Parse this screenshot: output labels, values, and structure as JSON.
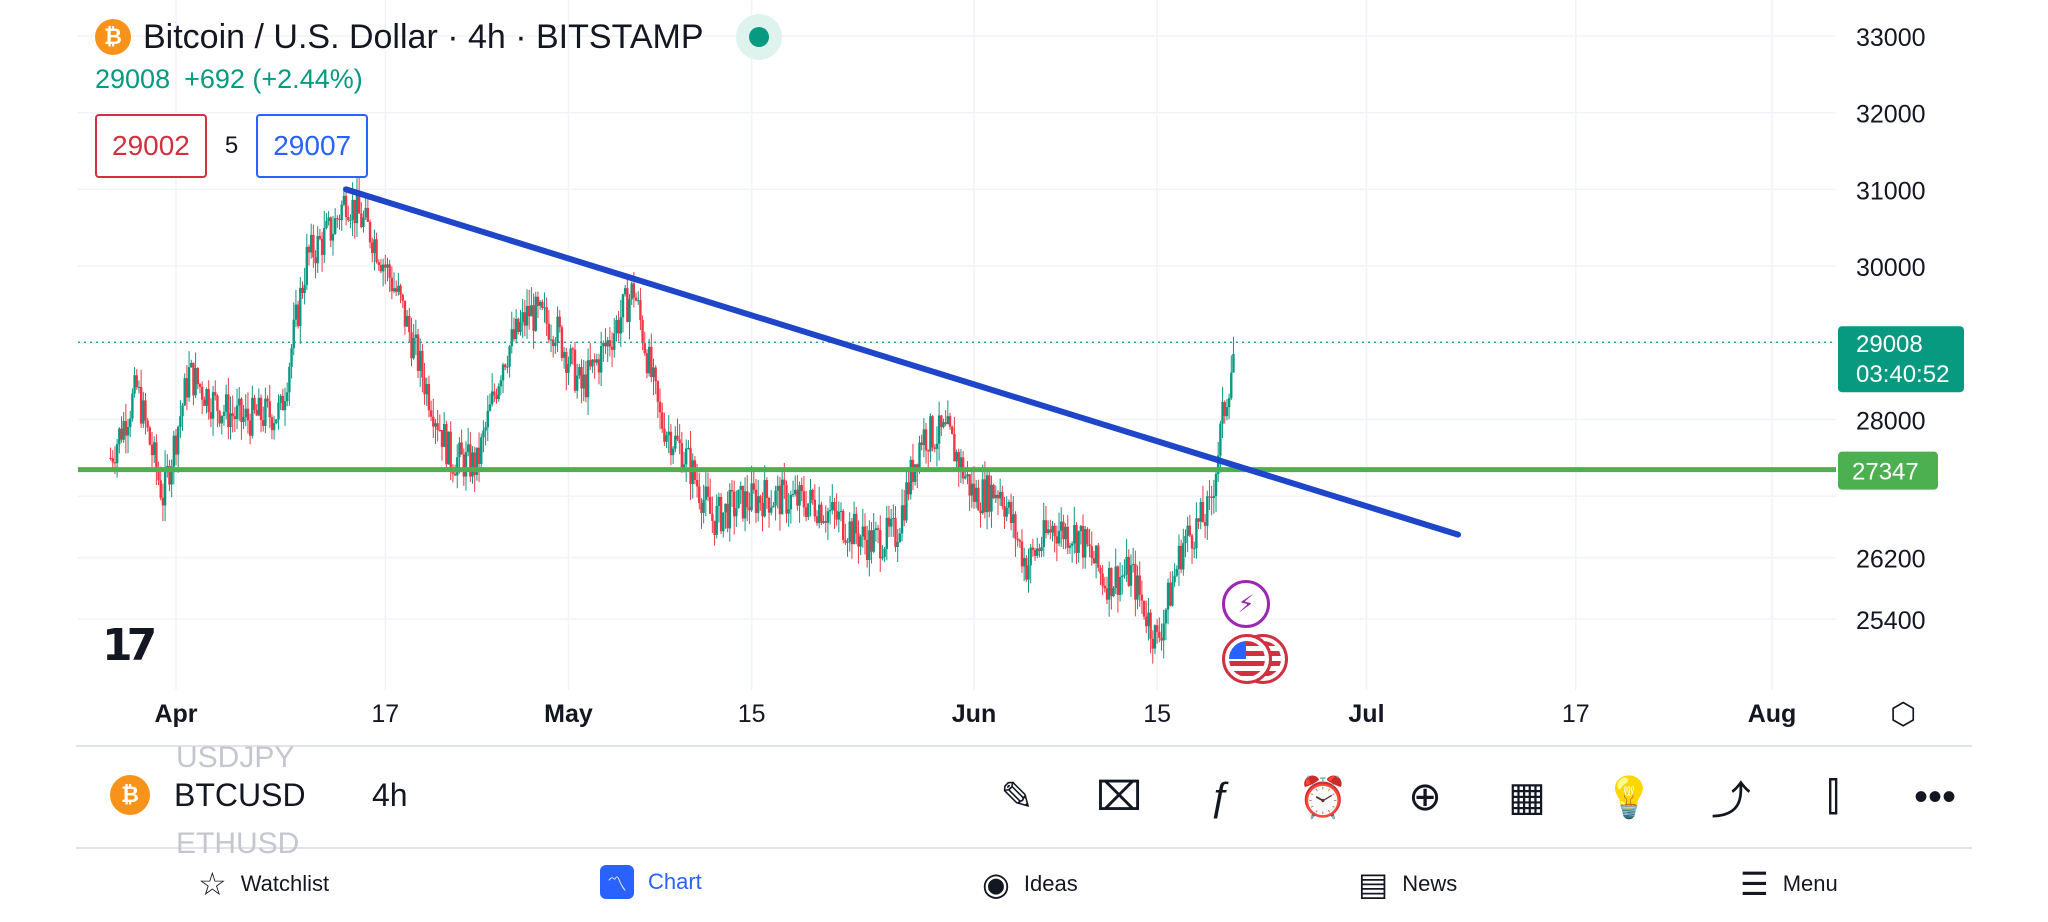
{
  "header": {
    "title": "Bitcoin / U.S. Dollar · 4h · BITSTAMP",
    "coin_glyph": "₿",
    "last_price": "29008",
    "change": "+692 (+2.44%)",
    "bid": "29002",
    "spread": "5",
    "ask": "29007"
  },
  "price_axis": {
    "labels": [
      "33000",
      "32000",
      "31000",
      "30000",
      "28000",
      "26200",
      "25400"
    ]
  },
  "price_tags": {
    "last_price": "29008",
    "countdown": "03:40:52",
    "level": "27347"
  },
  "time_axis": {
    "labels": [
      "Apr",
      "17",
      "May",
      "15",
      "Jun",
      "15",
      "Jul",
      "17",
      "Aug"
    ]
  },
  "events": {
    "bolt_glyph": "⚡"
  },
  "toolbar": {
    "faded_prev": "USDJPY",
    "faded_next": "ETHUSD",
    "symbol": "BTCUSD",
    "timeframe": "4h",
    "tools": [
      {
        "name": "draw-tool-button",
        "glyph": "✎"
      },
      {
        "name": "clear-drawings-button",
        "glyph": "⌧"
      },
      {
        "name": "indicators-button",
        "glyph": "ƒ"
      },
      {
        "name": "alert-button",
        "glyph": "⏰"
      },
      {
        "name": "add-button",
        "glyph": "⊕"
      },
      {
        "name": "layouts-button",
        "glyph": "▦"
      },
      {
        "name": "ideas-button",
        "glyph": "💡"
      },
      {
        "name": "share-button",
        "glyph": "⤴"
      },
      {
        "name": "chart-type-button",
        "glyph": "⫿"
      },
      {
        "name": "more-button",
        "glyph": "•••"
      }
    ]
  },
  "nav": {
    "watchlist": "Watchlist",
    "chart": "Chart",
    "ideas": "Ideas",
    "news": "News",
    "menu": "Menu"
  },
  "colors": {
    "up": "#089981",
    "down": "#f23645",
    "trendline": "#1f45c8",
    "level_line": "#4caf50",
    "accent": "#2962ff"
  },
  "chart_data": {
    "type": "candlestick",
    "symbol": "BTCUSD",
    "timeframe": "4h",
    "x_labels": [
      "Apr",
      "17",
      "May",
      "15",
      "Jun",
      "15",
      "Jul",
      "17",
      "Aug"
    ],
    "ylim": [
      24600,
      33300
    ],
    "last_price": 29008,
    "horizontal_level": 27347,
    "trendline": {
      "start": {
        "date": "2023-04-14",
        "price": 31000
      },
      "end": {
        "date": "2023-07-08",
        "price": 26500
      }
    },
    "price_path": [
      [
        "2023-03-27",
        27500
      ],
      [
        "2023-03-29",
        28400
      ],
      [
        "2023-03-31",
        27000
      ],
      [
        "2023-04-02",
        28600
      ],
      [
        "2023-04-04",
        28200
      ],
      [
        "2023-04-06",
        28000
      ],
      [
        "2023-04-09",
        28100
      ],
      [
        "2023-04-11",
        30100
      ],
      [
        "2023-04-13",
        30500
      ],
      [
        "2023-04-14",
        30900
      ],
      [
        "2023-04-16",
        30400
      ],
      [
        "2023-04-18",
        29600
      ],
      [
        "2023-04-20",
        28500
      ],
      [
        "2023-04-22",
        27500
      ],
      [
        "2023-04-24",
        27400
      ],
      [
        "2023-04-26",
        28800
      ],
      [
        "2023-04-28",
        29400
      ],
      [
        "2023-04-30",
        29200
      ],
      [
        "2023-05-02",
        28400
      ],
      [
        "2023-05-04",
        29000
      ],
      [
        "2023-05-06",
        29700
      ],
      [
        "2023-05-08",
        28000
      ],
      [
        "2023-05-10",
        27500
      ],
      [
        "2023-05-12",
        26700
      ],
      [
        "2023-05-14",
        26900
      ],
      [
        "2023-05-16",
        27000
      ],
      [
        "2023-05-20",
        26900
      ],
      [
        "2023-05-24",
        26400
      ],
      [
        "2023-05-26",
        26500
      ],
      [
        "2023-05-28",
        27800
      ],
      [
        "2023-05-30",
        27800
      ],
      [
        "2023-06-01",
        27000
      ],
      [
        "2023-06-03",
        27100
      ],
      [
        "2023-06-05",
        26100
      ],
      [
        "2023-06-07",
        26600
      ],
      [
        "2023-06-09",
        26500
      ],
      [
        "2023-06-11",
        25900
      ],
      [
        "2023-06-13",
        26000
      ],
      [
        "2023-06-15",
        25100
      ],
      [
        "2023-06-17",
        26400
      ],
      [
        "2023-06-19",
        26800
      ],
      [
        "2023-06-20",
        28000
      ],
      [
        "2023-06-21",
        29008
      ]
    ]
  }
}
